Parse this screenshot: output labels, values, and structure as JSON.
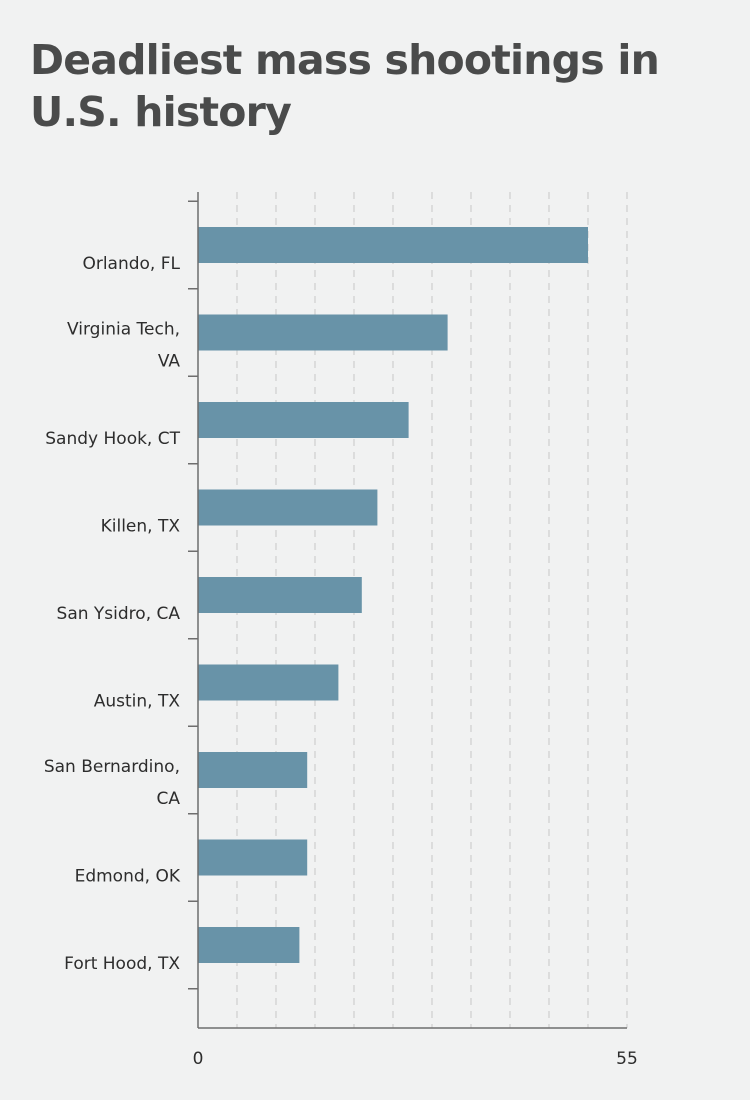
{
  "chart_data": {
    "type": "bar",
    "orientation": "horizontal",
    "title": "Deadliest mass shootings in U.S. history",
    "xlabel": "",
    "ylabel": "",
    "categories": [
      "Orlando, FL",
      "Virginia Tech, VA",
      "Sandy Hook, CT",
      "Killen, TX",
      "San Ysidro, CA",
      "Austin, TX",
      "San Bernardino, CA",
      "Edmond, OK",
      "Fort Hood, TX"
    ],
    "category_lines": [
      [
        "Orlando, FL"
      ],
      [
        "Virginia Tech,",
        "VA"
      ],
      [
        "Sandy Hook, CT"
      ],
      [
        "Killen, TX"
      ],
      [
        "San Ysidro, CA"
      ],
      [
        "Austin, TX"
      ],
      [
        "San Bernardino,",
        "CA"
      ],
      [
        "Edmond, OK"
      ],
      [
        "Fort Hood, TX"
      ]
    ],
    "values": [
      50,
      32,
      27,
      23,
      21,
      18,
      14,
      14,
      13
    ],
    "xlim": [
      0,
      55
    ],
    "x_tick_labels": [
      "0",
      "55"
    ],
    "grid": "vertical dashed",
    "bar_color": "#6893a8"
  }
}
